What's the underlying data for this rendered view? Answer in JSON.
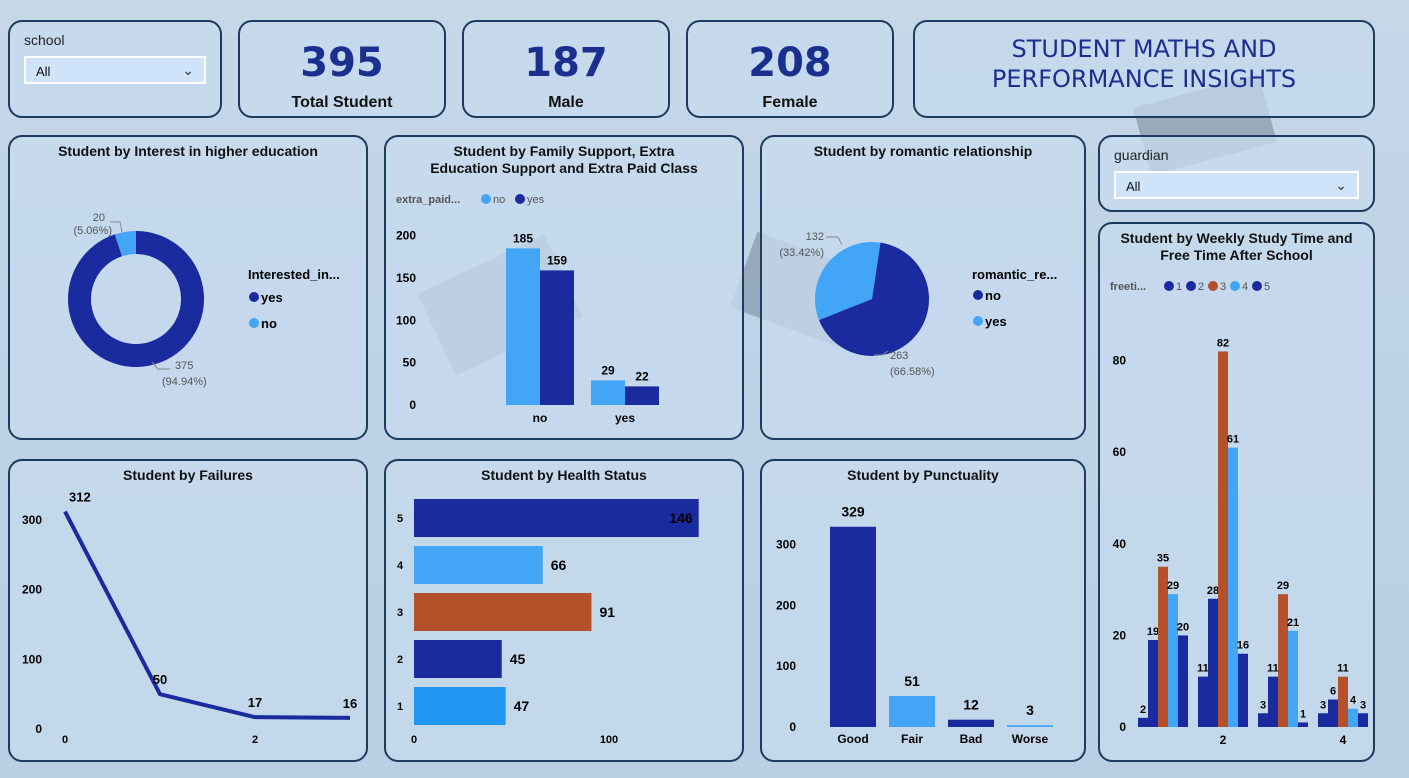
{
  "colors": {
    "dark_blue": "#1a2ba0",
    "light_blue": "#42a5f5",
    "orange": "#b4502a",
    "navy_text": "#1b2f8f"
  },
  "filters": {
    "school": {
      "label": "school",
      "value": "All"
    },
    "guardian": {
      "label": "guardian",
      "value": "All"
    }
  },
  "kpis": {
    "total": {
      "value": "395",
      "label": "Total Student"
    },
    "male": {
      "value": "187",
      "label": "Male"
    },
    "female": {
      "value": "208",
      "label": "Female"
    }
  },
  "title": "STUDENT MATHS AND PERFORMANCE INSIGHTS",
  "chart_data": [
    {
      "id": "higher",
      "type": "pie",
      "variant": "donut",
      "title": "Student by Interest in higher education",
      "legend_title": "Interested_in...",
      "slices": [
        {
          "label": "yes",
          "value": 375,
          "pct": "(94.94%)",
          "color": "#1a2ba0"
        },
        {
          "label": "no",
          "value": 20,
          "pct": "(5.06%)",
          "color": "#42a5f5"
        }
      ]
    },
    {
      "id": "family",
      "type": "bar",
      "title": "Student by Family Support, Extra Education Support and Extra Paid Class",
      "legend_title": "extra_paid...",
      "categories": [
        "no",
        "yes"
      ],
      "series": [
        {
          "name": "no",
          "values": [
            185,
            29
          ],
          "color": "#42a5f5"
        },
        {
          "name": "yes",
          "values": [
            159,
            22
          ],
          "color": "#1a2ba0"
        }
      ],
      "yticks": [
        0,
        50,
        100,
        150,
        200
      ],
      "ylim": [
        0,
        215
      ]
    },
    {
      "id": "romantic",
      "type": "pie",
      "title": "Student by romantic relationship",
      "legend_title": "romantic_re...",
      "slices": [
        {
          "label": "no",
          "value": 263,
          "pct": "(66.58%)",
          "color": "#1a2ba0"
        },
        {
          "label": "yes",
          "value": 132,
          "pct": "(33.42%)",
          "color": "#42a5f5"
        }
      ]
    },
    {
      "id": "failures",
      "type": "line",
      "title": "Student by Failures",
      "x": [
        0,
        1,
        2,
        3
      ],
      "xticks": [
        "0",
        "",
        "2",
        ""
      ],
      "values": [
        312,
        50,
        17,
        16
      ],
      "yticks": [
        0,
        100,
        200,
        300
      ],
      "ylim": [
        0,
        330
      ]
    },
    {
      "id": "health",
      "type": "bar",
      "orientation": "horizontal",
      "title": "Student by Health Status",
      "categories": [
        "5",
        "4",
        "3",
        "2",
        "1"
      ],
      "values": [
        146,
        66,
        91,
        45,
        47
      ],
      "colors": [
        "#1a2ba0",
        "#42a5f5",
        "#b4502a",
        "#1a2ba0",
        "#2196f3"
      ],
      "xticks": [
        0,
        100
      ],
      "xlim": [
        0,
        160
      ]
    },
    {
      "id": "punctuality",
      "type": "bar",
      "title": "Student by Punctuality",
      "categories": [
        "Good",
        "Fair",
        "Bad",
        "Worse"
      ],
      "values": [
        329,
        51,
        12,
        3
      ],
      "colors": [
        "#1a2ba0",
        "#42a5f5",
        "#1a2ba0",
        "#42a5f5"
      ],
      "yticks": [
        0,
        100,
        200,
        300
      ],
      "ylim": [
        0,
        345
      ]
    },
    {
      "id": "study",
      "type": "bar",
      "title": "Student by Weekly Study Time and Free Time After School",
      "legend_title": "freeti...",
      "categories": [
        "1",
        "2",
        "3",
        "4"
      ],
      "xticks": [
        "",
        "2",
        "",
        "4"
      ],
      "series": [
        {
          "name": "1",
          "values": [
            2,
            11,
            3,
            3
          ],
          "color": "#1a2ba0"
        },
        {
          "name": "2",
          "values": [
            19,
            28,
            11,
            6
          ],
          "color": "#1a2ba0"
        },
        {
          "name": "3",
          "values": [
            35,
            82,
            29,
            11
          ],
          "color": "#b4502a"
        },
        {
          "name": "4",
          "values": [
            29,
            61,
            21,
            4
          ],
          "color": "#42a5f5"
        },
        {
          "name": "5",
          "values": [
            20,
            16,
            1,
            3
          ],
          "color": "#1a2ba0"
        }
      ],
      "yticks": [
        0,
        20,
        40,
        60,
        80
      ],
      "ylim": [
        0,
        88
      ]
    }
  ]
}
